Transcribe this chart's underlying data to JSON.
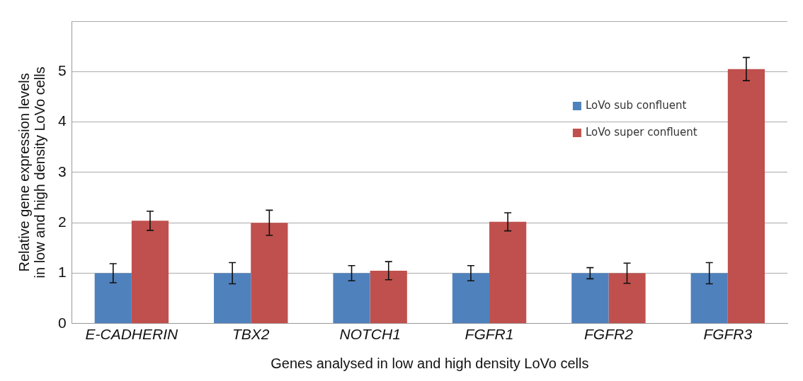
{
  "chart_data": {
    "type": "bar",
    "xlabel": "Genes analysed in low and high density LoVo cells",
    "ylabel": "Relative gene expression levels\nin low and high density LoVo cells",
    "categories": [
      "E-CADHERIN",
      "TBX2",
      "NOTCH1",
      "FGFR1",
      "FGFR2",
      "FGFR3"
    ],
    "series": [
      {
        "name": "LoVo sub confluent",
        "color": "#4f81bd",
        "values": [
          1,
          1,
          1,
          1,
          1,
          1
        ],
        "errors": [
          0.19,
          0.21,
          0.15,
          0.15,
          0.11,
          0.21
        ]
      },
      {
        "name": "LoVo super confluent",
        "color": "#c0504d",
        "values": [
          2.04,
          2.0,
          1.05,
          2.02,
          1.0,
          5.05
        ],
        "errors": [
          0.19,
          0.25,
          0.18,
          0.18,
          0.2,
          0.23
        ]
      }
    ],
    "ylim": [
      0,
      6
    ],
    "yticks": [
      0,
      1,
      2,
      3,
      4,
      5,
      {
        "value": 6,
        "label": null
      }
    ],
    "grid": "y",
    "legend": "top right"
  }
}
